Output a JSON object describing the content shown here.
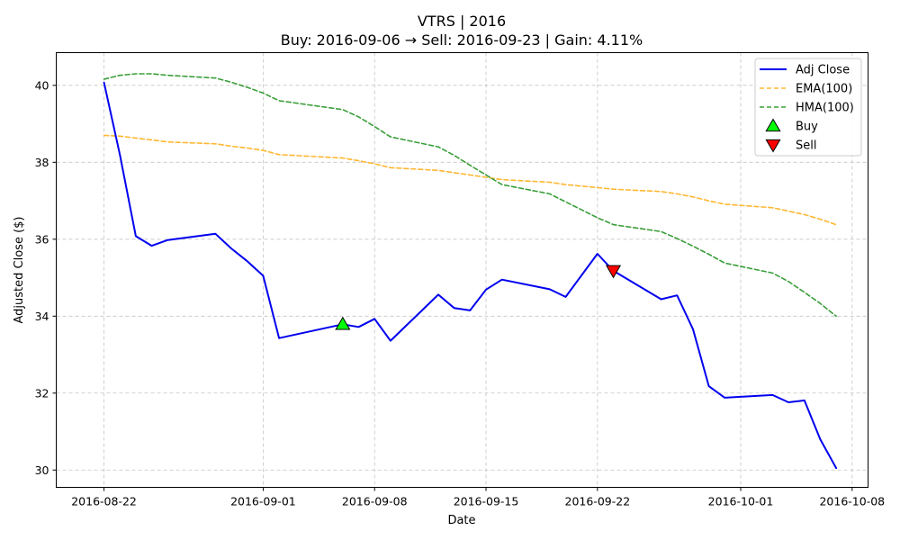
{
  "chart_data": {
    "type": "line",
    "title": "VTRS | 2016",
    "subtitle": "Buy: 2016-09-06  →  Sell: 2016-09-23  |  Gain: 4.11%",
    "xlabel": "Date",
    "ylabel": "Adjusted Close ($)",
    "x_ticks": [
      "2016-08-22",
      "2016-09-01",
      "2016-09-08",
      "2016-09-15",
      "2016-09-22",
      "2016-10-01",
      "2016-10-08"
    ],
    "y_ticks": [
      30,
      32,
      34,
      36,
      38,
      40
    ],
    "xlim": [
      "2016-08-19",
      "2016-10-09"
    ],
    "ylim": [
      29.55,
      40.85
    ],
    "grid": true,
    "legend_position": "top-right",
    "series": [
      {
        "name": "Adj Close",
        "color": "#0000ee",
        "style": "solid",
        "points": [
          [
            "2016-08-22",
            40.07
          ],
          [
            "2016-08-23",
            38.2
          ],
          [
            "2016-08-24",
            36.08
          ],
          [
            "2016-08-25",
            35.83
          ],
          [
            "2016-08-26",
            35.98
          ],
          [
            "2016-08-29",
            36.14
          ],
          [
            "2016-08-30",
            35.76
          ],
          [
            "2016-08-31",
            35.43
          ],
          [
            "2016-09-01",
            35.05
          ],
          [
            "2016-09-02",
            33.43
          ],
          [
            "2016-09-06",
            33.79
          ],
          [
            "2016-09-07",
            33.72
          ],
          [
            "2016-09-08",
            33.93
          ],
          [
            "2016-09-09",
            33.36
          ],
          [
            "2016-09-12",
            34.56
          ],
          [
            "2016-09-13",
            34.21
          ],
          [
            "2016-09-14",
            34.15
          ],
          [
            "2016-09-15",
            34.69
          ],
          [
            "2016-09-16",
            34.95
          ],
          [
            "2016-09-19",
            34.7
          ],
          [
            "2016-09-20",
            34.5
          ],
          [
            "2016-09-22",
            35.62
          ],
          [
            "2016-09-23",
            35.18
          ],
          [
            "2016-09-26",
            34.44
          ],
          [
            "2016-09-27",
            34.54
          ],
          [
            "2016-09-28",
            33.66
          ],
          [
            "2016-09-29",
            32.18
          ],
          [
            "2016-09-30",
            31.88
          ],
          [
            "2016-10-03",
            31.95
          ],
          [
            "2016-10-04",
            31.76
          ],
          [
            "2016-10-05",
            31.81
          ],
          [
            "2016-10-06",
            30.8
          ],
          [
            "2016-10-07",
            30.05
          ]
        ]
      },
      {
        "name": "EMA(100)",
        "color": "#ffb732",
        "style": "dashed",
        "points": [
          [
            "2016-08-22",
            38.7
          ],
          [
            "2016-08-23",
            38.68
          ],
          [
            "2016-08-24",
            38.63
          ],
          [
            "2016-08-25",
            38.58
          ],
          [
            "2016-08-26",
            38.53
          ],
          [
            "2016-08-29",
            38.48
          ],
          [
            "2016-08-30",
            38.42
          ],
          [
            "2016-08-31",
            38.37
          ],
          [
            "2016-09-01",
            38.31
          ],
          [
            "2016-09-02",
            38.2
          ],
          [
            "2016-09-06",
            38.11
          ],
          [
            "2016-09-07",
            38.04
          ],
          [
            "2016-09-08",
            37.96
          ],
          [
            "2016-09-09",
            37.86
          ],
          [
            "2016-09-12",
            37.79
          ],
          [
            "2016-09-13",
            37.73
          ],
          [
            "2016-09-14",
            37.67
          ],
          [
            "2016-09-15",
            37.61
          ],
          [
            "2016-09-16",
            37.55
          ],
          [
            "2016-09-19",
            37.48
          ],
          [
            "2016-09-20",
            37.42
          ],
          [
            "2016-09-22",
            37.34
          ],
          [
            "2016-09-23",
            37.3
          ],
          [
            "2016-09-26",
            37.24
          ],
          [
            "2016-09-27",
            37.18
          ],
          [
            "2016-09-28",
            37.1
          ],
          [
            "2016-09-29",
            37.0
          ],
          [
            "2016-09-30",
            36.91
          ],
          [
            "2016-10-03",
            36.82
          ],
          [
            "2016-10-04",
            36.73
          ],
          [
            "2016-10-05",
            36.64
          ],
          [
            "2016-10-06",
            36.52
          ],
          [
            "2016-10-07",
            36.38
          ]
        ]
      },
      {
        "name": "HMA(100)",
        "color": "#3a9e3a",
        "style": "dashed",
        "points": [
          [
            "2016-08-22",
            40.16
          ],
          [
            "2016-08-23",
            40.26
          ],
          [
            "2016-08-24",
            40.3
          ],
          [
            "2016-08-25",
            40.3
          ],
          [
            "2016-08-26",
            40.26
          ],
          [
            "2016-08-29",
            40.19
          ],
          [
            "2016-08-30",
            40.08
          ],
          [
            "2016-08-31",
            39.95
          ],
          [
            "2016-09-01",
            39.8
          ],
          [
            "2016-09-02",
            39.6
          ],
          [
            "2016-09-06",
            39.37
          ],
          [
            "2016-09-07",
            39.18
          ],
          [
            "2016-09-08",
            38.93
          ],
          [
            "2016-09-09",
            38.66
          ],
          [
            "2016-09-12",
            38.4
          ],
          [
            "2016-09-13",
            38.18
          ],
          [
            "2016-09-14",
            37.92
          ],
          [
            "2016-09-15",
            37.67
          ],
          [
            "2016-09-16",
            37.42
          ],
          [
            "2016-09-19",
            37.18
          ],
          [
            "2016-09-20",
            36.97
          ],
          [
            "2016-09-22",
            36.56
          ],
          [
            "2016-09-23",
            36.38
          ],
          [
            "2016-09-26",
            36.2
          ],
          [
            "2016-09-27",
            36.02
          ],
          [
            "2016-09-28",
            35.82
          ],
          [
            "2016-09-29",
            35.61
          ],
          [
            "2016-09-30",
            35.38
          ],
          [
            "2016-10-03",
            35.12
          ],
          [
            "2016-10-04",
            34.9
          ],
          [
            "2016-10-05",
            34.62
          ],
          [
            "2016-10-06",
            34.33
          ],
          [
            "2016-10-07",
            34.0
          ]
        ]
      }
    ],
    "markers": [
      {
        "name": "Buy",
        "date": "2016-09-06",
        "value": 33.79,
        "shape": "triangle-up",
        "color": "#00ff00"
      },
      {
        "name": "Sell",
        "date": "2016-09-23",
        "value": 35.18,
        "shape": "triangle-down",
        "color": "#ff0000"
      }
    ]
  }
}
